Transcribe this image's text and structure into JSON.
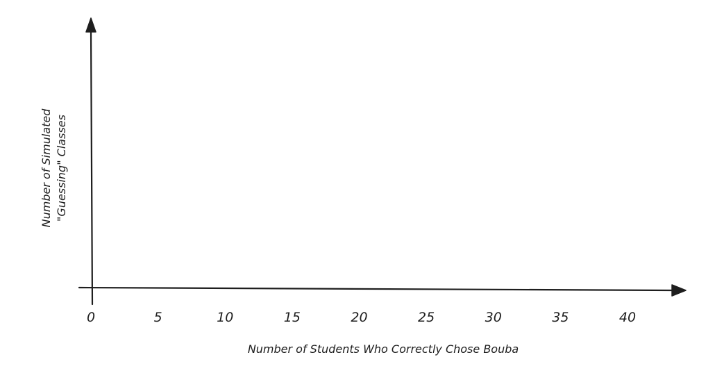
{
  "chart_data": {
    "type": "scatter",
    "title": "",
    "xlabel": "Number of Students Who Correctly Chose Bouba",
    "ylabel_lines": [
      "Number of Simulated",
      "\"Guessing\" Classes"
    ],
    "x_ticks": [
      0,
      5,
      10,
      15,
      20,
      25,
      30,
      35,
      40
    ],
    "xlim": [
      0,
      44
    ],
    "series": [],
    "grid": false,
    "legend": "none"
  },
  "colors": {
    "ink": "#1e1e1e",
    "background": "#ffffff"
  }
}
